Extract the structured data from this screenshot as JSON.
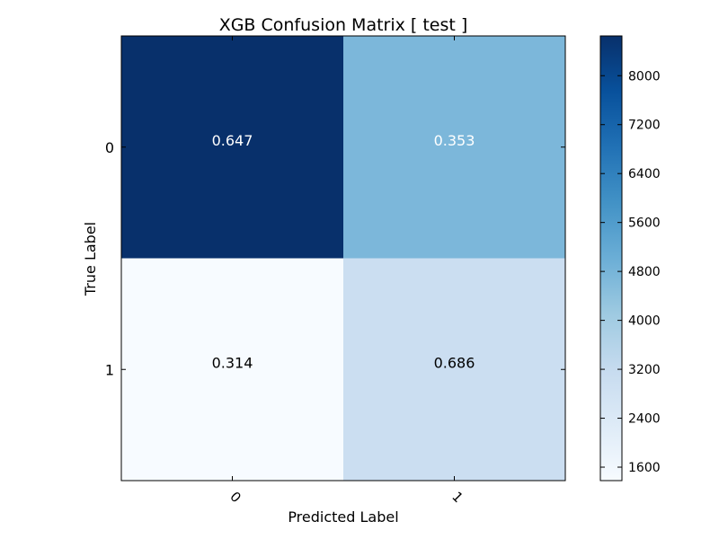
{
  "chart_data": {
    "type": "heatmap",
    "title": "XGB Confusion Matrix [ test ]",
    "xlabel": "Predicted Label",
    "ylabel": "True Label",
    "x_categories": [
      "0",
      "1"
    ],
    "y_categories": [
      "0",
      "1"
    ],
    "cell_labels": [
      [
        "0.647",
        "0.353"
      ],
      [
        "0.314",
        "0.686"
      ]
    ],
    "cell_values": [
      [
        8650,
        4720
      ],
      [
        1380,
        3020
      ]
    ],
    "colorbar": {
      "ticks": [
        "1600",
        "2400",
        "3200",
        "4000",
        "4800",
        "5600",
        "6400",
        "7200",
        "8000"
      ],
      "range": [
        1380,
        8650
      ],
      "colormap": "Blues"
    },
    "colors": {
      "cmap_low": "#f7fbff",
      "cmap_high": "#08306b"
    }
  }
}
